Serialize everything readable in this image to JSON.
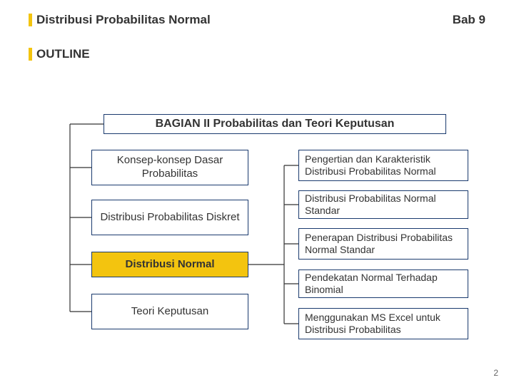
{
  "header": {
    "title_left": "Distribusi Probabilitas Normal",
    "title_right": "Bab 9",
    "outline": "OUTLINE"
  },
  "diagram": {
    "main": "BAGIAN   II  Probabilitas dan Teori Keputusan",
    "left": [
      "Konsep-konsep Dasar Probabilitas",
      "Distribusi Probabilitas Diskret",
      "Distribusi Normal",
      "Teori Keputusan"
    ],
    "right": [
      "Pengertian dan Karakteristik Distribusi Probabilitas Normal",
      "Distribusi Probabilitas Normal Standar",
      "Penerapan Distribusi Probabilitas Normal Standar",
      "Pendekatan Normal Terhadap Binomial",
      "Menggunakan MS Excel untuk Distribusi Probabilitas"
    ]
  },
  "style": {
    "accent_color": "#f3c40f",
    "border_color": "#1a3a6e",
    "line_color": "#333333",
    "left_box_tops": [
      210,
      280,
      353,
      412
    ],
    "left_highlight_index": 2,
    "right_box_tops": [
      210,
      267,
      320,
      378,
      432
    ],
    "right_box_heights": [
      44,
      40,
      44,
      40,
      44
    ]
  },
  "page_number": "2"
}
